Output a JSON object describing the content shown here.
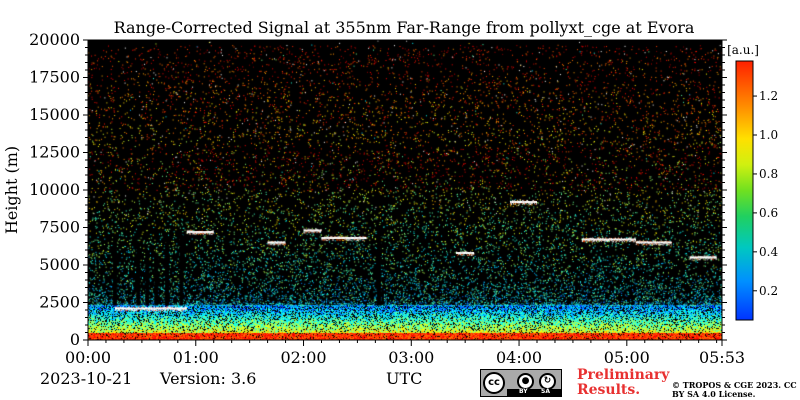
{
  "chart_data": {
    "type": "heatmap",
    "title": "Range-Corrected Signal at 355nm Far-Range from pollyxt_cge at Evora",
    "xlabel": "",
    "ylabel": "Height (m)",
    "x_ticks": [
      "00:00",
      "01:00",
      "02:00",
      "03:00",
      "04:00",
      "05:00",
      "05:53"
    ],
    "y_ticks": [
      0,
      2500,
      5000,
      7500,
      10000,
      12500,
      15000,
      17500,
      20000
    ],
    "ylim": [
      0,
      20000
    ],
    "x_range": [
      "00:00",
      "05:53"
    ],
    "colorbar": {
      "label": "[a.u.]",
      "range": [
        0.05,
        1.38
      ],
      "ticks": [
        0.2,
        0.4,
        0.6,
        0.8,
        1.0,
        1.2
      ],
      "tick_labels": [
        "0.2",
        "0.4",
        "0.6",
        "0.8",
        "1.0",
        "1.2"
      ],
      "colormap": "jet"
    },
    "background_color": "#000000",
    "features": {
      "boundary_layer_top_m": 2300,
      "ground_layer_top_m": 500,
      "noise_ceiling_m": 20000,
      "high_signal_band_m": [
        10000,
        13000
      ],
      "cloud_layers": [
        {
          "start": "00:15",
          "end": "00:55",
          "height_m": 2100
        },
        {
          "start": "00:55",
          "end": "01:10",
          "height_m": 7200
        },
        {
          "start": "01:40",
          "end": "01:50",
          "height_m": 6500
        },
        {
          "start": "02:00",
          "end": "02:10",
          "height_m": 7300
        },
        {
          "start": "02:10",
          "end": "02:35",
          "height_m": 6800
        },
        {
          "start": "03:25",
          "end": "03:35",
          "height_m": 5800
        },
        {
          "start": "03:55",
          "end": "04:10",
          "height_m": 9200
        },
        {
          "start": "04:35",
          "end": "05:05",
          "height_m": 6700
        },
        {
          "start": "05:05",
          "end": "05:25",
          "height_m": 6500
        },
        {
          "start": "05:35",
          "end": "05:50",
          "height_m": 5500
        }
      ],
      "virga_columns": [
        {
          "time": "00:15",
          "bottom_m": 2300,
          "top_m": 7000
        },
        {
          "time": "00:28",
          "bottom_m": 2300,
          "top_m": 6500
        },
        {
          "time": "00:33",
          "bottom_m": 2300,
          "top_m": 6000
        },
        {
          "time": "00:38",
          "bottom_m": 2300,
          "top_m": 5500
        },
        {
          "time": "00:44",
          "bottom_m": 2300,
          "top_m": 6500
        },
        {
          "time": "00:52",
          "bottom_m": 2300,
          "top_m": 7000
        },
        {
          "time": "02:42",
          "bottom_m": 2300,
          "top_m": 7500
        }
      ]
    }
  },
  "footer": {
    "date": "2023-10-21",
    "version": "Version: 3.6",
    "axis_unit": "UTC",
    "preliminary": "Preliminary Results.",
    "copyright": "© TROPOS & CGE 2023. CC BY SA 4.0 License.",
    "license_badge": {
      "icon": "cc-by-sa-icon",
      "cc": "cc",
      "by": "BY",
      "sa": "SA"
    }
  }
}
